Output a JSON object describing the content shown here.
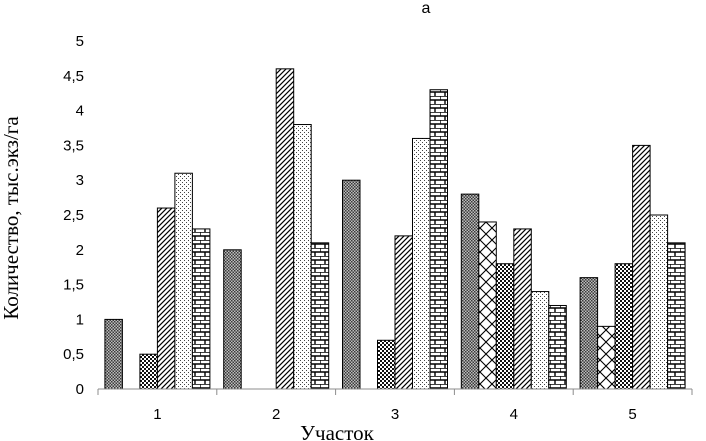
{
  "chart_data": {
    "type": "bar",
    "title": "а",
    "xlabel": "Участок",
    "ylabel": "Количество, тыс.экз/га",
    "categories": [
      "1",
      "2",
      "3",
      "4",
      "5"
    ],
    "ylim": [
      0,
      5
    ],
    "y_ticks": [
      "0",
      "0,5",
      "1",
      "1,5",
      "2",
      "2,5",
      "3",
      "3,5",
      "4",
      "4,5",
      "5"
    ],
    "grid": false,
    "legend": "none",
    "series": [
      {
        "pattern": "dense-dots-gray",
        "values": [
          1.0,
          2.0,
          3.0,
          2.8,
          1.6
        ]
      },
      {
        "pattern": "diamond-lattice",
        "values": [
          0,
          0,
          0,
          2.4,
          0.9
        ]
      },
      {
        "pattern": "dark-checker",
        "values": [
          0.5,
          0,
          0.7,
          1.8,
          1.8
        ]
      },
      {
        "pattern": "diagonal-stripes",
        "values": [
          2.6,
          4.6,
          2.2,
          2.3,
          3.5
        ]
      },
      {
        "pattern": "sparse-dots",
        "values": [
          3.1,
          3.8,
          3.6,
          1.4,
          2.5
        ]
      },
      {
        "pattern": "brick",
        "values": [
          2.3,
          2.1,
          4.3,
          1.2,
          2.1
        ]
      }
    ]
  }
}
